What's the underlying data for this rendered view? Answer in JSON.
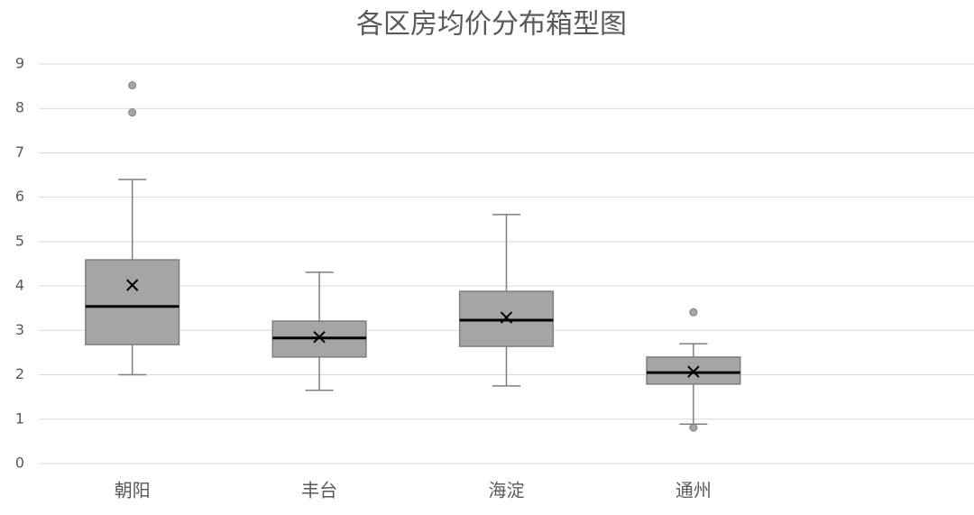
{
  "chart_data": {
    "type": "box",
    "title": "各区房均价分布箱型图",
    "categories": [
      "朝阳",
      "丰台",
      "海淀",
      "通州",
      null
    ],
    "boxes": [
      {
        "min": 2.0,
        "q1": 2.68,
        "median": 3.54,
        "q3": 4.59,
        "max": 6.4,
        "mean": 4.02,
        "outliers": [
          8.52,
          7.91
        ]
      },
      {
        "min": 1.65,
        "q1": 2.4,
        "median": 2.83,
        "q3": 3.21,
        "max": 4.31,
        "mean": 2.85,
        "outliers": []
      },
      {
        "min": 1.75,
        "q1": 2.64,
        "median": 3.23,
        "q3": 3.88,
        "max": 5.61,
        "mean": 3.29,
        "outliers": []
      },
      {
        "min": 0.89,
        "q1": 1.79,
        "median": 2.05,
        "q3": 2.4,
        "max": 2.7,
        "mean": 2.07,
        "outliers": [
          3.41,
          0.81
        ]
      },
      null
    ],
    "color": "#a5a5a5",
    "ylim": [
      0,
      9
    ],
    "yticks": [
      0,
      1,
      2,
      3,
      4,
      5,
      6,
      7,
      8,
      9
    ],
    "grid": true
  }
}
